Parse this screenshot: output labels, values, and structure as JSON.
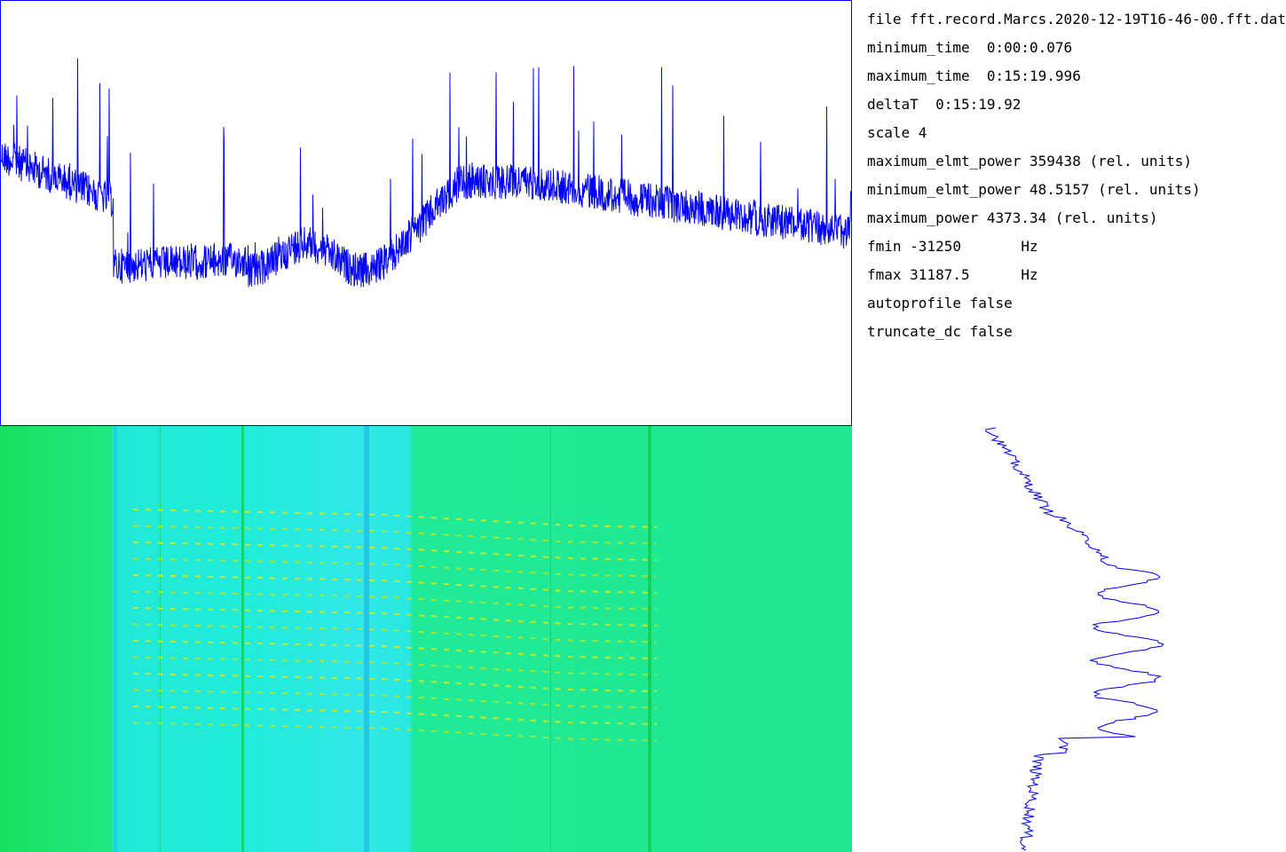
{
  "info": {
    "lines": [
      "file fft.record.Marcs.2020-12-19T16-46-00.fft.dat",
      "minimum_time  0:00:0.076",
      "maximum_time  0:15:19.996",
      "deltaT  0:15:19.92",
      "scale 4",
      "maximum_elmt_power 359438 (rel. units)",
      "minimum_elmt_power 48.5157 (rel. units)",
      "maximum_power 4373.34 (rel. units)",
      "fmin -31250       Hz",
      "fmax 31187.5      Hz",
      "autoprofile false",
      "truncate_dc false"
    ]
  }
}
